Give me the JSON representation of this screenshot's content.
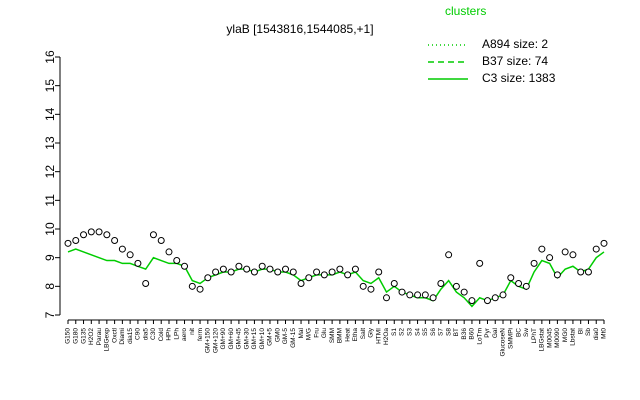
{
  "chart_data": {
    "type": "line",
    "title": "ylaB [1543816,1544085,+1]",
    "legend_title": "clusters",
    "categories": [
      "G150",
      "G180",
      "G135",
      "H2O2",
      "Parau",
      "LBGexp",
      "Oxctl",
      "Diami",
      "dia15",
      "C90",
      "dia5",
      "C30",
      "Cold",
      "HPh",
      "LPh",
      "aero",
      "nit",
      "ferm",
      "GM+150",
      "GM+120",
      "GM+90",
      "GM+60",
      "GM+45",
      "GM+30",
      "GM+15",
      "GM+10",
      "GM+5",
      "GM0",
      "GM-5",
      "GM-15",
      "Mal",
      "M/G",
      "Fru",
      "Glu",
      "SMM",
      "BMM",
      "Heat",
      "Etha",
      "Salt",
      "Gly",
      "HTMI",
      "H2Oa",
      "S1",
      "S2",
      "S3",
      "S4",
      "S5",
      "S6",
      "S7",
      "S8",
      "BT",
      "B36",
      "B60",
      "LoTm",
      "Pyr",
      "Gal",
      "GlucoseN",
      "SMMPi",
      "BC",
      "Sw",
      "LPhT",
      "LBGstat",
      "M0045",
      "M0090",
      "MG0",
      "Lbstat",
      "BI",
      "Sb",
      "dia0",
      "Mt0"
    ],
    "values": [
      9.5,
      9.6,
      9.8,
      9.9,
      9.9,
      9.8,
      9.6,
      9.3,
      9.1,
      8.8,
      8.1,
      9.8,
      9.6,
      9.2,
      8.9,
      8.7,
      8.0,
      7.9,
      8.3,
      8.5,
      8.6,
      8.5,
      8.7,
      8.6,
      8.5,
      8.7,
      8.6,
      8.5,
      8.6,
      8.5,
      8.1,
      8.3,
      8.5,
      8.4,
      8.5,
      8.6,
      8.4,
      8.6,
      8.0,
      7.9,
      8.5,
      7.6,
      8.1,
      7.8,
      7.7,
      7.7,
      7.7,
      7.6,
      8.1,
      9.1,
      8.0,
      7.8,
      7.5,
      8.8,
      7.5,
      7.6,
      7.7,
      8.3,
      8.1,
      8.0,
      8.8,
      9.3,
      9.0,
      8.4,
      9.2,
      9.1,
      8.5,
      8.5,
      9.3,
      9.5
    ],
    "point_color": "#000000",
    "series": [
      {
        "name": "A894 size: 2",
        "color": "#00cc00",
        "dash": "1,3"
      },
      {
        "name": "B37 size: 74",
        "color": "#00cc00",
        "dash": "6,4"
      },
      {
        "name": "C3 size: 1383",
        "color": "#00cc00",
        "dash": "none",
        "values": [
          9.2,
          9.3,
          9.2,
          9.1,
          9.0,
          8.9,
          8.9,
          8.8,
          8.8,
          8.7,
          8.6,
          9.0,
          8.9,
          8.8,
          8.8,
          8.7,
          8.2,
          8.1,
          8.3,
          8.4,
          8.5,
          8.5,
          8.6,
          8.6,
          8.5,
          8.6,
          8.6,
          8.5,
          8.5,
          8.4,
          8.2,
          8.3,
          8.4,
          8.4,
          8.4,
          8.5,
          8.4,
          8.5,
          8.2,
          8.1,
          8.3,
          7.8,
          8.0,
          7.8,
          7.7,
          7.6,
          7.6,
          7.5,
          7.9,
          8.2,
          7.8,
          7.6,
          7.3,
          7.6,
          7.5,
          7.6,
          7.7,
          8.2,
          8.0,
          7.9,
          8.5,
          8.9,
          8.8,
          8.3,
          8.6,
          8.7,
          8.5,
          8.6,
          9.0,
          9.2
        ]
      }
    ],
    "ylim": [
      7,
      16
    ],
    "yticks": [
      7,
      8,
      9,
      10,
      11,
      12,
      13,
      14,
      15,
      16
    ]
  }
}
